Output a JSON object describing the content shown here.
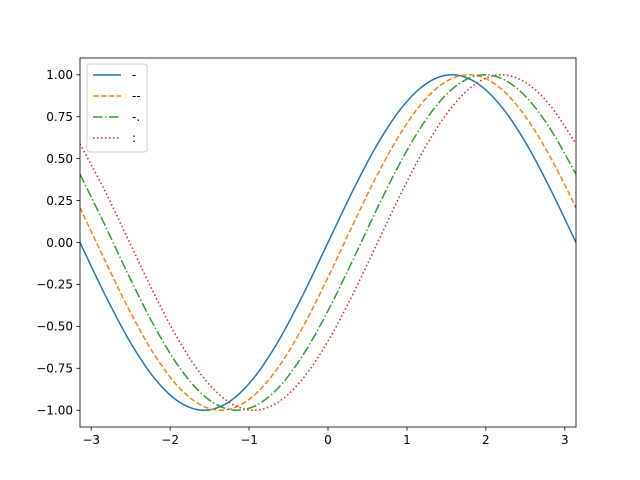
{
  "chart_data": {
    "type": "line",
    "title": "",
    "xlabel": "",
    "ylabel": "",
    "xlim": [
      -3.14159,
      3.14159
    ],
    "ylim": [
      -1.1,
      1.1
    ],
    "grid": false,
    "legend_position": "upper-left",
    "x_ticks": [
      {
        "value": -3,
        "label": "−3"
      },
      {
        "value": -2,
        "label": "−2"
      },
      {
        "value": -1,
        "label": "−1"
      },
      {
        "value": 0,
        "label": "0"
      },
      {
        "value": 1,
        "label": "1"
      },
      {
        "value": 2,
        "label": "2"
      },
      {
        "value": 3,
        "label": "3"
      }
    ],
    "y_ticks": [
      {
        "value": -1.0,
        "label": "−1.00"
      },
      {
        "value": -0.75,
        "label": "−0.75"
      },
      {
        "value": -0.5,
        "label": "−0.50"
      },
      {
        "value": -0.25,
        "label": "−0.25"
      },
      {
        "value": 0.0,
        "label": "0.00"
      },
      {
        "value": 0.25,
        "label": "0.25"
      },
      {
        "value": 0.5,
        "label": "0.50"
      },
      {
        "value": 0.75,
        "label": "0.75"
      },
      {
        "value": 1.0,
        "label": "1.00"
      }
    ],
    "series": [
      {
        "name": "-",
        "color": "#1f77b4",
        "linestyle": "solid",
        "x": [
          -3.1416,
          -2.8274,
          -2.5133,
          -2.1991,
          -1.885,
          -1.5708,
          -1.2566,
          -0.9425,
          -0.6283,
          -0.3142,
          0.0,
          0.3142,
          0.6283,
          0.9425,
          1.2566,
          1.5708,
          1.885,
          2.1991,
          2.5133,
          2.8274,
          3.1416
        ],
        "y": [
          0.0,
          -0.309,
          -0.588,
          -0.809,
          -0.951,
          -1.0,
          -0.951,
          -0.809,
          -0.588,
          -0.309,
          0.0,
          0.309,
          0.588,
          0.809,
          0.951,
          1.0,
          0.951,
          0.809,
          0.588,
          0.309,
          0.0
        ]
      },
      {
        "name": "--",
        "color": "#ff7f0e",
        "linestyle": "dashed",
        "x": [
          -3.1416,
          -2.8274,
          -2.5133,
          -2.1991,
          -1.885,
          -1.5708,
          -1.2566,
          -0.9425,
          -0.6283,
          -0.3142,
          0.0,
          0.3142,
          0.6283,
          0.9425,
          1.2566,
          1.5708,
          1.885,
          2.1991,
          2.5133,
          2.8274,
          3.1416
        ],
        "y": [
          0.208,
          -0.105,
          -0.407,
          -0.669,
          -0.866,
          -0.978,
          -0.995,
          -0.914,
          -0.743,
          -0.5,
          -0.208,
          0.105,
          0.407,
          0.669,
          0.866,
          0.978,
          0.995,
          0.914,
          0.743,
          0.5,
          0.208
        ]
      },
      {
        "name": "-.",
        "color": "#2ca02c",
        "linestyle": "dashdot",
        "x": [
          -3.1416,
          -2.8274,
          -2.5133,
          -2.1991,
          -1.885,
          -1.5708,
          -1.2566,
          -0.9425,
          -0.6283,
          -0.3142,
          0.0,
          0.3142,
          0.6283,
          0.9425,
          1.2566,
          1.5708,
          1.885,
          2.1991,
          2.5133,
          2.8274,
          3.1416
        ],
        "y": [
          0.407,
          0.105,
          -0.208,
          -0.5,
          -0.743,
          -0.914,
          -0.995,
          -0.978,
          -0.866,
          -0.669,
          -0.407,
          -0.105,
          0.208,
          0.5,
          0.743,
          0.914,
          0.995,
          0.978,
          0.866,
          0.669,
          0.407
        ]
      },
      {
        "name": ":",
        "color": "#d62728",
        "linestyle": "dotted",
        "x": [
          -3.1416,
          -2.8274,
          -2.5133,
          -2.1991,
          -1.885,
          -1.5708,
          -1.2566,
          -0.9425,
          -0.6283,
          -0.3142,
          0.0,
          0.3142,
          0.6283,
          0.9425,
          1.2566,
          1.5708,
          1.885,
          2.1991,
          2.5133,
          2.8274,
          3.1416
        ],
        "y": [
          0.588,
          0.309,
          0.0,
          -0.309,
          -0.588,
          -0.809,
          -0.951,
          -1.0,
          -0.951,
          -0.809,
          -0.588,
          -0.309,
          0.0,
          0.309,
          0.588,
          0.809,
          0.951,
          1.0,
          0.951,
          0.809,
          0.588
        ]
      }
    ]
  }
}
